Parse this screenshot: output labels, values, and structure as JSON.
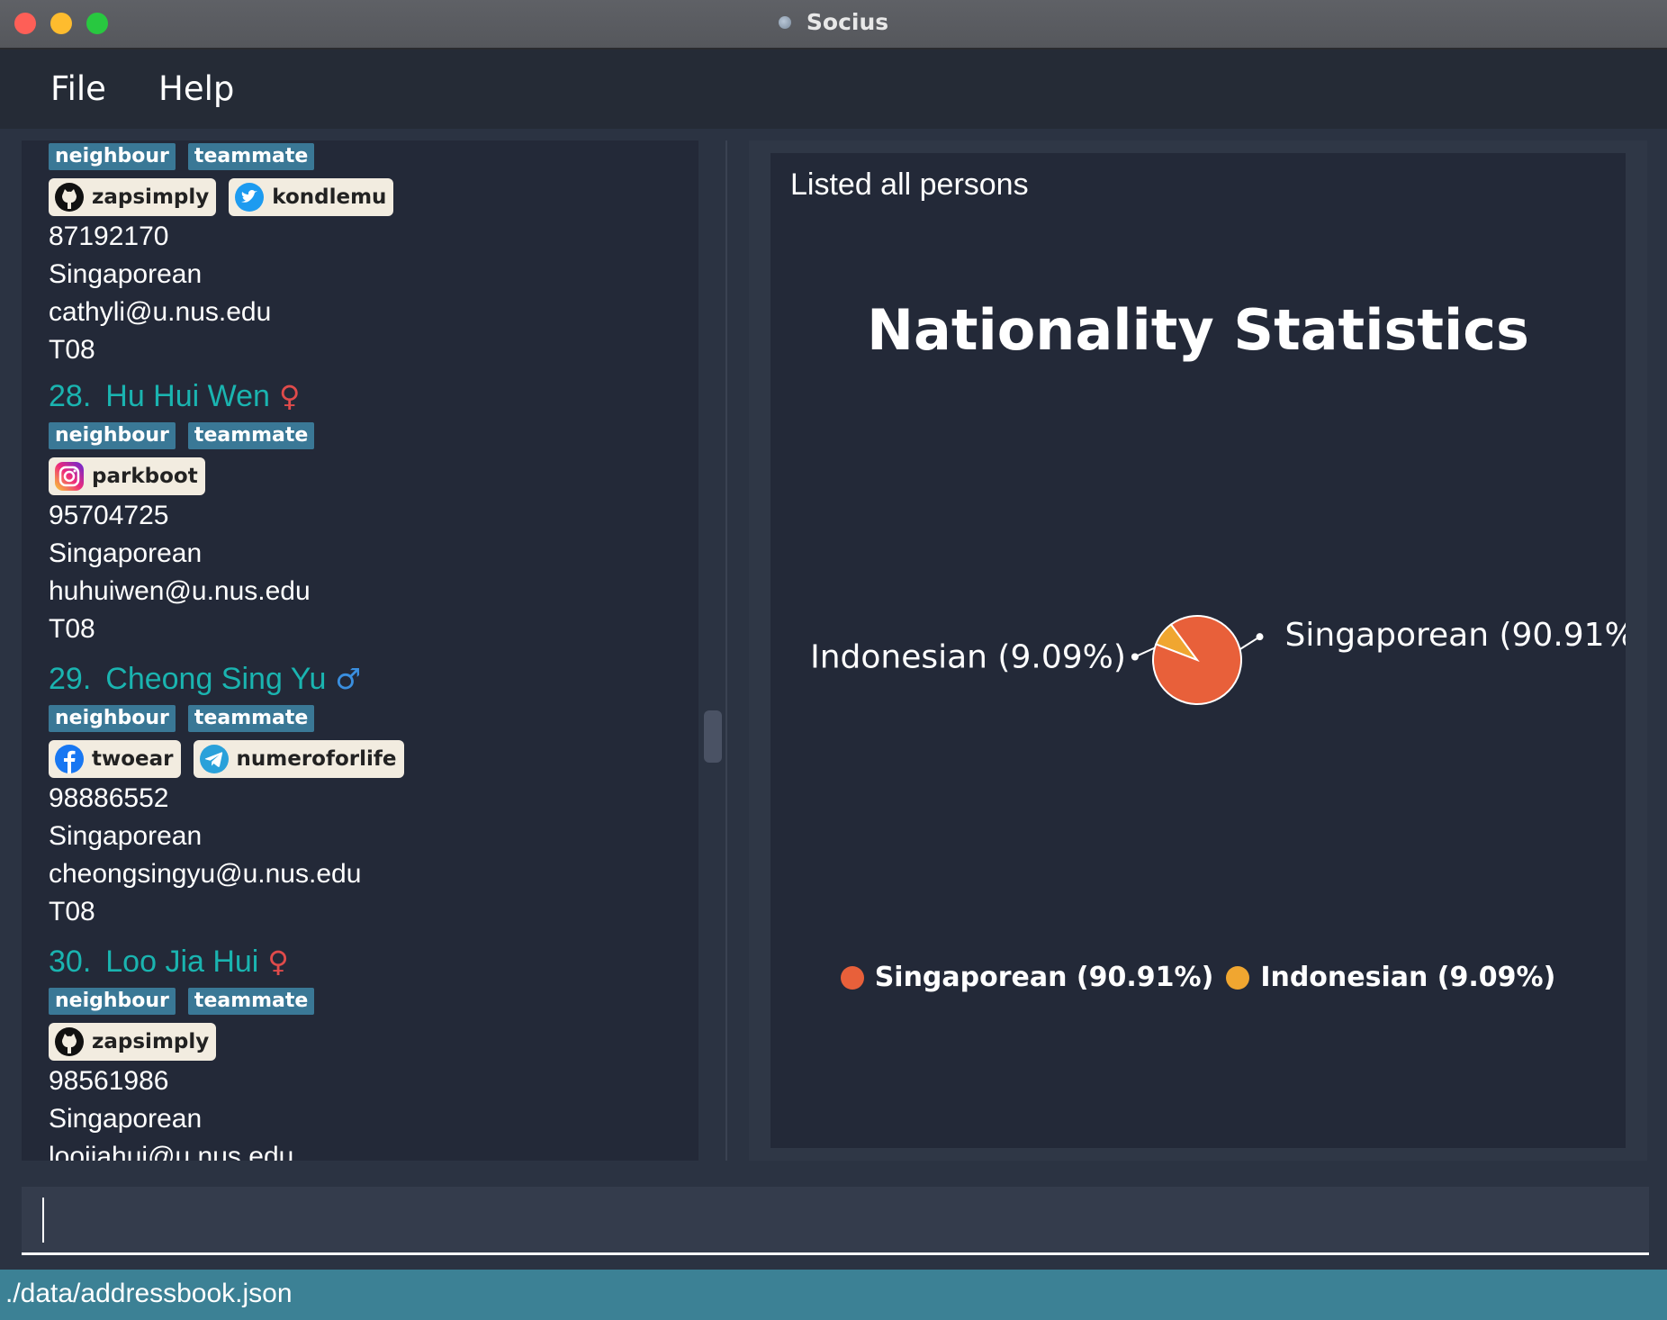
{
  "window": {
    "title": "Socius"
  },
  "menu": {
    "file": "File",
    "help": "Help"
  },
  "persons": [
    {
      "tags": [
        "neighbour",
        "teammate"
      ],
      "socials": [
        {
          "platform": "github-icon",
          "handle": "zapsimply"
        },
        {
          "platform": "twitter-icon",
          "handle": "kondlemu"
        }
      ],
      "phone": "87192170",
      "nationality": "Singaporean",
      "email": "cathyli@u.nus.edu",
      "tutorial": "T08"
    },
    {
      "index": "28.",
      "name": "Hu Hui Wen",
      "gender_symbol": "♀",
      "tags": [
        "neighbour",
        "teammate"
      ],
      "socials": [
        {
          "platform": "instagram-icon",
          "handle": "parkboot"
        }
      ],
      "phone": "95704725",
      "nationality": "Singaporean",
      "email": "huhuiwen@u.nus.edu",
      "tutorial": "T08"
    },
    {
      "index": "29.",
      "name": "Cheong Sing Yu",
      "gender_symbol": "♂",
      "tags": [
        "neighbour",
        "teammate"
      ],
      "socials": [
        {
          "platform": "facebook-icon",
          "handle": "twoear"
        },
        {
          "platform": "telegram-icon",
          "handle": "numeroforlife"
        }
      ],
      "phone": "98886552",
      "nationality": "Singaporean",
      "email": "cheongsingyu@u.nus.edu",
      "tutorial": "T08"
    },
    {
      "index": "30.",
      "name": "Loo Jia Hui",
      "gender_symbol": "♀",
      "tags": [
        "neighbour",
        "teammate"
      ],
      "socials": [
        {
          "platform": "github-icon",
          "handle": "zapsimply"
        }
      ],
      "phone": "98561986",
      "nationality": "Singaporean",
      "email": "loojiahui@u.nus.edu"
    }
  ],
  "result": {
    "message": "Listed all persons"
  },
  "chart_data": {
    "type": "pie",
    "title": "Nationality Statistics",
    "categories": [
      "Singaporean",
      "Indonesian"
    ],
    "values": [
      90.91,
      9.09
    ],
    "labels": [
      "Singaporean (90.91%)",
      "Indonesian (9.09%)"
    ],
    "colors": [
      "#e8603a",
      "#f0a630"
    ],
    "legend": "bottom"
  },
  "command": {
    "value": ""
  },
  "status": {
    "path": "./data/addressbook.json"
  }
}
